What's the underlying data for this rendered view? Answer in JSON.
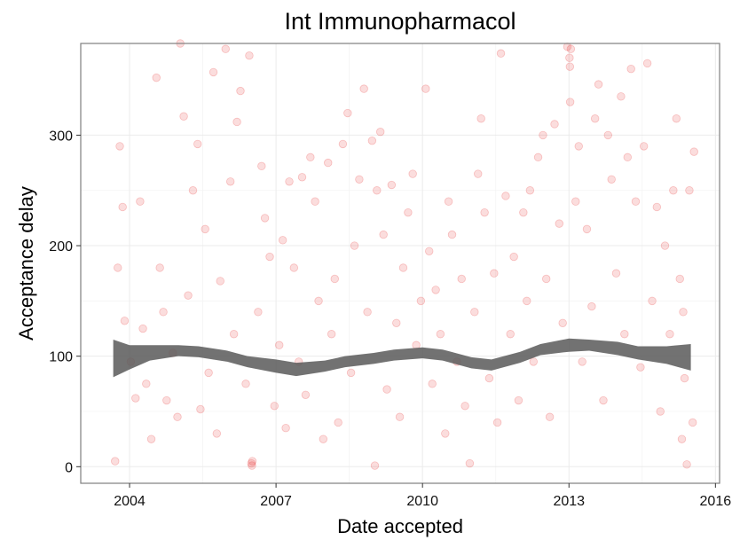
{
  "chart_data": {
    "type": "scatter",
    "title": "Int Immunopharmacol",
    "xlabel": "Date accepted",
    "ylabel": "Acceptance delay",
    "x_type": "date",
    "xlim": [
      "2003-01-01",
      "2016-02-01"
    ],
    "ylim": [
      -15,
      383
    ],
    "x_ticks": [
      "2004",
      "2007",
      "2010",
      "2013",
      "2016"
    ],
    "y_ticks": [
      0,
      100,
      200,
      300
    ],
    "grid": true,
    "point_color": "#e41a1c",
    "point_opacity": 0.15,
    "smooth_band_color": "#595959",
    "series": [
      {
        "kind": "points",
        "points": [
          {
            "x": "2003-09-15",
            "y": 5
          },
          {
            "x": "2003-10-20",
            "y": 290
          },
          {
            "x": "2003-11-10",
            "y": 235
          },
          {
            "x": "2003-10-05",
            "y": 180
          },
          {
            "x": "2003-11-25",
            "y": 132
          },
          {
            "x": "2004-01-10",
            "y": 95
          },
          {
            "x": "2004-02-15",
            "y": 62
          },
          {
            "x": "2004-03-20",
            "y": 240
          },
          {
            "x": "2004-04-10",
            "y": 125
          },
          {
            "x": "2004-05-05",
            "y": 75
          },
          {
            "x": "2004-06-12",
            "y": 25
          },
          {
            "x": "2004-07-20",
            "y": 352
          },
          {
            "x": "2004-08-15",
            "y": 180
          },
          {
            "x": "2004-09-10",
            "y": 140
          },
          {
            "x": "2004-10-05",
            "y": 60
          },
          {
            "x": "2004-11-20",
            "y": 103
          },
          {
            "x": "2004-12-25",
            "y": 45
          },
          {
            "x": "2005-01-15",
            "y": 383
          },
          {
            "x": "2005-02-10",
            "y": 317
          },
          {
            "x": "2005-03-15",
            "y": 155
          },
          {
            "x": "2005-04-20",
            "y": 250
          },
          {
            "x": "2005-05-25",
            "y": 292
          },
          {
            "x": "2005-06-15",
            "y": 52
          },
          {
            "x": "2005-07-20",
            "y": 215
          },
          {
            "x": "2005-08-15",
            "y": 85
          },
          {
            "x": "2005-09-20",
            "y": 357
          },
          {
            "x": "2005-10-15",
            "y": 30
          },
          {
            "x": "2005-11-10",
            "y": 168
          },
          {
            "x": "2005-12-20",
            "y": 378
          },
          {
            "x": "2006-01-25",
            "y": 258
          },
          {
            "x": "2006-02-20",
            "y": 120
          },
          {
            "x": "2006-03-15",
            "y": 312
          },
          {
            "x": "2006-04-10",
            "y": 340
          },
          {
            "x": "2006-05-20",
            "y": 75
          },
          {
            "x": "2006-06-15",
            "y": 372
          },
          {
            "x": "2006-07-01",
            "y": 3
          },
          {
            "x": "2006-07-05",
            "y": 1
          },
          {
            "x": "2006-07-08",
            "y": 5
          },
          {
            "x": "2006-08-20",
            "y": 140
          },
          {
            "x": "2006-09-15",
            "y": 272
          },
          {
            "x": "2006-10-10",
            "y": 225
          },
          {
            "x": "2006-11-15",
            "y": 190
          },
          {
            "x": "2006-12-20",
            "y": 55
          },
          {
            "x": "2007-01-25",
            "y": 110
          },
          {
            "x": "2007-02-20",
            "y": 205
          },
          {
            "x": "2007-03-15",
            "y": 35
          },
          {
            "x": "2007-04-10",
            "y": 258
          },
          {
            "x": "2007-05-15",
            "y": 180
          },
          {
            "x": "2007-06-20",
            "y": 95
          },
          {
            "x": "2007-07-15",
            "y": 262
          },
          {
            "x": "2007-08-10",
            "y": 65
          },
          {
            "x": "2007-09-15",
            "y": 280
          },
          {
            "x": "2007-10-20",
            "y": 240
          },
          {
            "x": "2007-11-15",
            "y": 150
          },
          {
            "x": "2007-12-20",
            "y": 25
          },
          {
            "x": "2008-01-25",
            "y": 275
          },
          {
            "x": "2008-02-20",
            "y": 120
          },
          {
            "x": "2008-03-15",
            "y": 170
          },
          {
            "x": "2008-04-10",
            "y": 40
          },
          {
            "x": "2008-05-15",
            "y": 292
          },
          {
            "x": "2008-06-20",
            "y": 320
          },
          {
            "x": "2008-07-15",
            "y": 85
          },
          {
            "x": "2008-08-10",
            "y": 200
          },
          {
            "x": "2008-09-15",
            "y": 260
          },
          {
            "x": "2008-10-20",
            "y": 342
          },
          {
            "x": "2008-11-15",
            "y": 140
          },
          {
            "x": "2008-12-20",
            "y": 295
          },
          {
            "x": "2009-01-10",
            "y": 1
          },
          {
            "x": "2009-01-25",
            "y": 250
          },
          {
            "x": "2009-02-20",
            "y": 303
          },
          {
            "x": "2009-03-15",
            "y": 210
          },
          {
            "x": "2009-04-10",
            "y": 70
          },
          {
            "x": "2009-05-15",
            "y": 255
          },
          {
            "x": "2009-06-20",
            "y": 130
          },
          {
            "x": "2009-07-15",
            "y": 45
          },
          {
            "x": "2009-08-10",
            "y": 180
          },
          {
            "x": "2009-09-15",
            "y": 230
          },
          {
            "x": "2009-10-20",
            "y": 265
          },
          {
            "x": "2009-11-15",
            "y": 110
          },
          {
            "x": "2009-12-20",
            "y": 150
          },
          {
            "x": "2010-01-25",
            "y": 342
          },
          {
            "x": "2010-02-20",
            "y": 195
          },
          {
            "x": "2010-03-15",
            "y": 75
          },
          {
            "x": "2010-04-10",
            "y": 160
          },
          {
            "x": "2010-05-15",
            "y": 120
          },
          {
            "x": "2010-06-20",
            "y": 30
          },
          {
            "x": "2010-07-15",
            "y": 240
          },
          {
            "x": "2010-08-10",
            "y": 210
          },
          {
            "x": "2010-09-15",
            "y": 95
          },
          {
            "x": "2010-10-20",
            "y": 170
          },
          {
            "x": "2010-11-15",
            "y": 55
          },
          {
            "x": "2010-12-20",
            "y": 3
          },
          {
            "x": "2011-01-25",
            "y": 140
          },
          {
            "x": "2011-02-20",
            "y": 265
          },
          {
            "x": "2011-03-15",
            "y": 315
          },
          {
            "x": "2011-04-10",
            "y": 230
          },
          {
            "x": "2011-05-15",
            "y": 80
          },
          {
            "x": "2011-06-20",
            "y": 175
          },
          {
            "x": "2011-07-15",
            "y": 40
          },
          {
            "x": "2011-08-10",
            "y": 374
          },
          {
            "x": "2011-09-15",
            "y": 245
          },
          {
            "x": "2011-10-20",
            "y": 120
          },
          {
            "x": "2011-11-15",
            "y": 190
          },
          {
            "x": "2011-12-20",
            "y": 60
          },
          {
            "x": "2012-01-25",
            "y": 230
          },
          {
            "x": "2012-02-20",
            "y": 150
          },
          {
            "x": "2012-03-15",
            "y": 250
          },
          {
            "x": "2012-04-10",
            "y": 95
          },
          {
            "x": "2012-05-15",
            "y": 280
          },
          {
            "x": "2012-06-20",
            "y": 300
          },
          {
            "x": "2012-07-15",
            "y": 170
          },
          {
            "x": "2012-08-10",
            "y": 45
          },
          {
            "x": "2012-09-15",
            "y": 310
          },
          {
            "x": "2012-10-20",
            "y": 220
          },
          {
            "x": "2012-11-15",
            "y": 130
          },
          {
            "x": "2012-12-20",
            "y": 380
          },
          {
            "x": "2013-01-05",
            "y": 370
          },
          {
            "x": "2013-01-08",
            "y": 362
          },
          {
            "x": "2013-01-10",
            "y": 330
          },
          {
            "x": "2013-01-15",
            "y": 378
          },
          {
            "x": "2013-02-20",
            "y": 240
          },
          {
            "x": "2013-03-15",
            "y": 290
          },
          {
            "x": "2013-04-10",
            "y": 95
          },
          {
            "x": "2013-05-15",
            "y": 215
          },
          {
            "x": "2013-06-20",
            "y": 145
          },
          {
            "x": "2013-07-15",
            "y": 315
          },
          {
            "x": "2013-08-10",
            "y": 346
          },
          {
            "x": "2013-09-15",
            "y": 60
          },
          {
            "x": "2013-10-20",
            "y": 300
          },
          {
            "x": "2013-11-15",
            "y": 260
          },
          {
            "x": "2013-12-20",
            "y": 175
          },
          {
            "x": "2014-01-25",
            "y": 335
          },
          {
            "x": "2014-02-20",
            "y": 120
          },
          {
            "x": "2014-03-15",
            "y": 280
          },
          {
            "x": "2014-04-10",
            "y": 360
          },
          {
            "x": "2014-05-15",
            "y": 240
          },
          {
            "x": "2014-06-20",
            "y": 90
          },
          {
            "x": "2014-07-15",
            "y": 290
          },
          {
            "x": "2014-08-10",
            "y": 365
          },
          {
            "x": "2014-09-15",
            "y": 150
          },
          {
            "x": "2014-10-20",
            "y": 235
          },
          {
            "x": "2014-11-15",
            "y": 50
          },
          {
            "x": "2014-12-20",
            "y": 200
          },
          {
            "x": "2015-01-25",
            "y": 120
          },
          {
            "x": "2015-02-20",
            "y": 250
          },
          {
            "x": "2015-03-15",
            "y": 315
          },
          {
            "x": "2015-04-10",
            "y": 170
          },
          {
            "x": "2015-05-15",
            "y": 80
          },
          {
            "x": "2015-06-20",
            "y": 250
          },
          {
            "x": "2015-07-15",
            "y": 40
          },
          {
            "x": "2015-07-25",
            "y": 285
          },
          {
            "x": "2015-06-01",
            "y": 2
          },
          {
            "x": "2015-05-05",
            "y": 140
          },
          {
            "x": "2015-04-25",
            "y": 25
          }
        ]
      },
      {
        "kind": "smooth",
        "x": [
          "2003-09-01",
          "2004-01-01",
          "2004-06-01",
          "2005-01-01",
          "2005-06-01",
          "2006-01-01",
          "2006-06-01",
          "2007-01-01",
          "2007-06-01",
          "2008-01-01",
          "2008-06-01",
          "2009-01-01",
          "2009-06-01",
          "2010-01-01",
          "2010-06-01",
          "2011-01-01",
          "2011-06-01",
          "2012-01-01",
          "2012-06-01",
          "2013-01-01",
          "2013-06-01",
          "2014-01-01",
          "2014-06-01",
          "2015-01-01",
          "2015-07-01"
        ],
        "center": [
          98,
          99,
          103,
          105,
          104,
          100,
          95,
          91,
          88,
          91,
          95,
          98,
          101,
          103,
          101,
          94,
          92,
          99,
          106,
          110,
          110,
          107,
          103,
          101,
          99
        ],
        "half_width": [
          17,
          11,
          7,
          5,
          5,
          5,
          5,
          6,
          6,
          5,
          5,
          5,
          5,
          5,
          5,
          5,
          5,
          5,
          5,
          6,
          5,
          6,
          6,
          8,
          12
        ]
      }
    ]
  }
}
